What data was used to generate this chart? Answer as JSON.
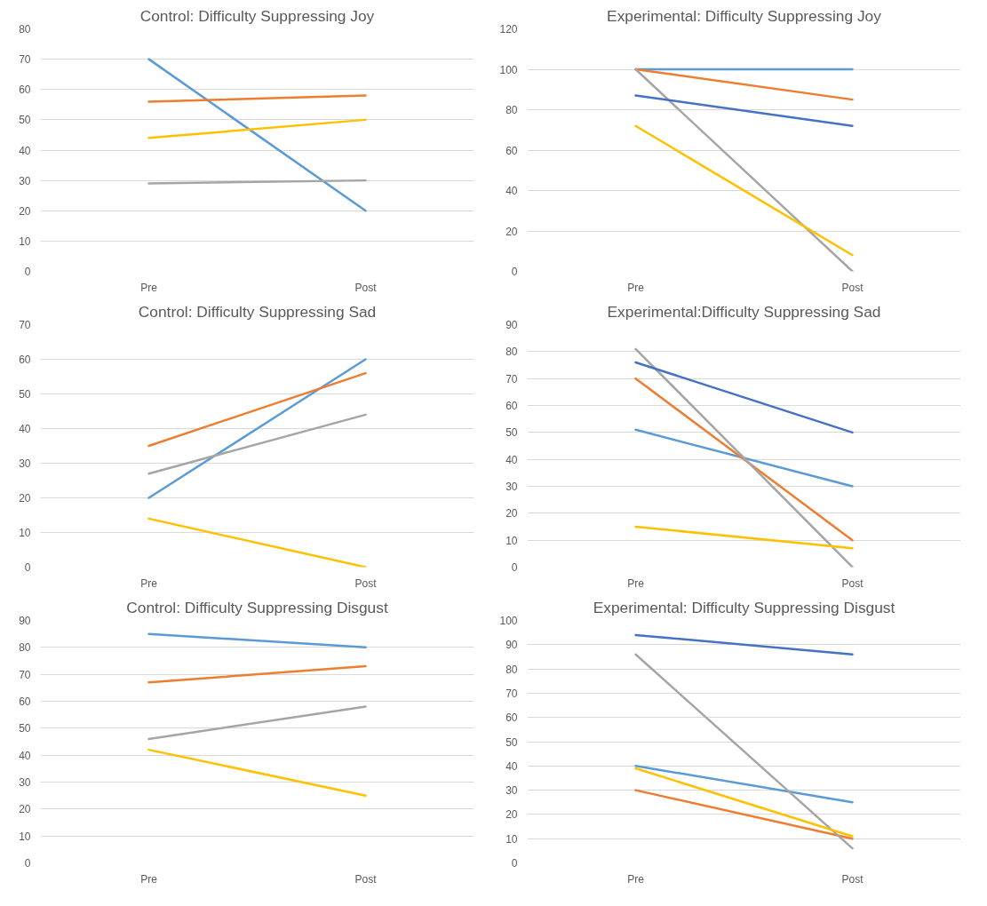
{
  "chart_data": [
    {
      "type": "line",
      "title": "Control: Difficulty Suppressing Joy",
      "categories": [
        "Pre",
        "Post"
      ],
      "ylim": [
        0,
        80
      ],
      "yticks": [
        0,
        10,
        20,
        30,
        40,
        50,
        60,
        70,
        80
      ],
      "grid": "y",
      "line_style": "solid",
      "series": [
        {
          "color": "#5b9bd5",
          "values": [
            70,
            20
          ]
        },
        {
          "color": "#ed7d31",
          "values": [
            56,
            58
          ]
        },
        {
          "color": "#a5a5a5",
          "values": [
            29,
            30
          ]
        },
        {
          "color": "#ffc000",
          "values": [
            44,
            50
          ]
        }
      ]
    },
    {
      "type": "line",
      "title": "Experimental: Difficulty Suppressing Joy",
      "categories": [
        "Pre",
        "Post"
      ],
      "ylim": [
        0,
        120
      ],
      "yticks": [
        0,
        20,
        40,
        60,
        80,
        100,
        120
      ],
      "grid": "y",
      "line_style": "solid",
      "series": [
        {
          "color": "#5b9bd5",
          "values": [
            100,
            100
          ]
        },
        {
          "color": "#ed7d31",
          "values": [
            100,
            85
          ]
        },
        {
          "color": "#a5a5a5",
          "values": [
            100,
            0
          ]
        },
        {
          "color": "#ffc000",
          "values": [
            72,
            8
          ]
        },
        {
          "color": "#4472c4",
          "values": [
            87,
            72
          ]
        }
      ]
    },
    {
      "type": "line",
      "title": "Control: Difficulty Suppressing Sad",
      "categories": [
        "Pre",
        "Post"
      ],
      "ylim": [
        0,
        70
      ],
      "yticks": [
        0,
        10,
        20,
        30,
        40,
        50,
        60,
        70
      ],
      "grid": "y",
      "line_style": "solid",
      "series": [
        {
          "color": "#5b9bd5",
          "values": [
            20,
            60
          ]
        },
        {
          "color": "#ed7d31",
          "values": [
            35,
            56
          ]
        },
        {
          "color": "#a5a5a5",
          "values": [
            27,
            44
          ]
        },
        {
          "color": "#ffc000",
          "values": [
            14,
            0
          ]
        }
      ]
    },
    {
      "type": "line",
      "title": "Experimental:Difficulty Suppressing Sad",
      "categories": [
        "Pre",
        "Post"
      ],
      "ylim": [
        0,
        90
      ],
      "yticks": [
        0,
        10,
        20,
        30,
        40,
        50,
        60,
        70,
        80,
        90
      ],
      "grid": "y",
      "line_style": "solid",
      "series": [
        {
          "color": "#5b9bd5",
          "values": [
            51,
            30
          ]
        },
        {
          "color": "#ed7d31",
          "values": [
            70,
            10
          ]
        },
        {
          "color": "#a5a5a5",
          "values": [
            81,
            0
          ]
        },
        {
          "color": "#ffc000",
          "values": [
            15,
            7
          ]
        },
        {
          "color": "#4472c4",
          "values": [
            76,
            50
          ]
        }
      ]
    },
    {
      "type": "line",
      "title": "Control: Difficulty Suppressing Disgust",
      "categories": [
        "Pre",
        "Post"
      ],
      "ylim": [
        0,
        90
      ],
      "yticks": [
        0,
        10,
        20,
        30,
        40,
        50,
        60,
        70,
        80,
        90
      ],
      "grid": "y",
      "line_style": "solid",
      "series": [
        {
          "color": "#5b9bd5",
          "values": [
            85,
            80
          ]
        },
        {
          "color": "#ed7d31",
          "values": [
            67,
            73
          ]
        },
        {
          "color": "#a5a5a5",
          "values": [
            46,
            58
          ]
        },
        {
          "color": "#ffc000",
          "values": [
            42,
            25
          ]
        }
      ]
    },
    {
      "type": "line",
      "title": "Experimental: Difficulty Suppressing Disgust",
      "categories": [
        "Pre",
        "Post"
      ],
      "ylim": [
        0,
        100
      ],
      "yticks": [
        0,
        10,
        20,
        30,
        40,
        50,
        60,
        70,
        80,
        90,
        100
      ],
      "grid": "y",
      "line_style": "solid",
      "series": [
        {
          "color": "#5b9bd5",
          "values": [
            40,
            25
          ]
        },
        {
          "color": "#ed7d31",
          "values": [
            30,
            10
          ]
        },
        {
          "color": "#a5a5a5",
          "values": [
            86,
            6
          ]
        },
        {
          "color": "#ffc000",
          "values": [
            39,
            11
          ]
        },
        {
          "color": "#4472c4",
          "values": [
            94,
            86
          ]
        }
      ]
    }
  ]
}
